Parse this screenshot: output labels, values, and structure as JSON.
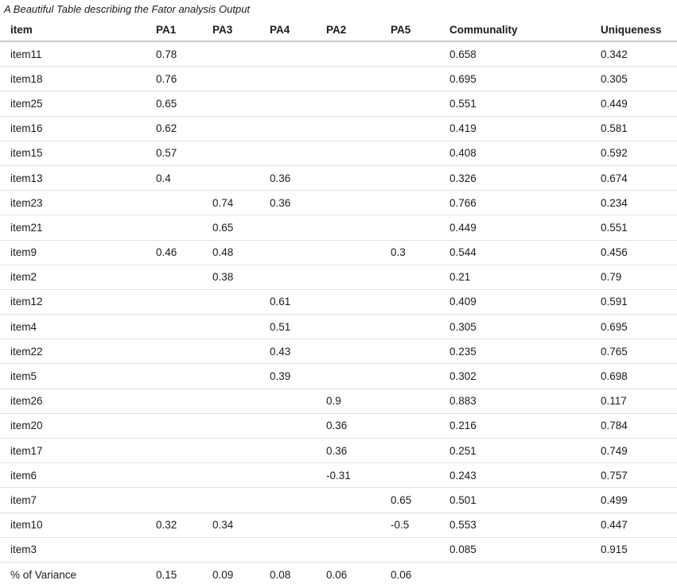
{
  "title": "A Beautiful Table describing the Fator analysis Output",
  "chart_data": {
    "type": "table",
    "title": "A Beautiful Table describing the Fator analysis Output",
    "columns": [
      "item",
      "PA1",
      "PA3",
      "PA4",
      "PA2",
      "PA5",
      "Communality",
      "Uniqueness"
    ],
    "rows": [
      [
        "item11",
        "0.78",
        "",
        "",
        "",
        "",
        "0.658",
        "0.342"
      ],
      [
        "item18",
        "0.76",
        "",
        "",
        "",
        "",
        "0.695",
        "0.305"
      ],
      [
        "item25",
        "0.65",
        "",
        "",
        "",
        "",
        "0.551",
        "0.449"
      ],
      [
        "item16",
        "0.62",
        "",
        "",
        "",
        "",
        "0.419",
        "0.581"
      ],
      [
        "item15",
        "0.57",
        "",
        "",
        "",
        "",
        "0.408",
        "0.592"
      ],
      [
        "item13",
        "0.4",
        "",
        "0.36",
        "",
        "",
        "0.326",
        "0.674"
      ],
      [
        "item23",
        "",
        "0.74",
        "0.36",
        "",
        "",
        "0.766",
        "0.234"
      ],
      [
        "item21",
        "",
        "0.65",
        "",
        "",
        "",
        "0.449",
        "0.551"
      ],
      [
        "item9",
        "0.46",
        "0.48",
        "",
        "",
        "0.3",
        "0.544",
        "0.456"
      ],
      [
        "item2",
        "",
        "0.38",
        "",
        "",
        "",
        "0.21",
        "0.79"
      ],
      [
        "item12",
        "",
        "",
        "0.61",
        "",
        "",
        "0.409",
        "0.591"
      ],
      [
        "item4",
        "",
        "",
        "0.51",
        "",
        "",
        "0.305",
        "0.695"
      ],
      [
        "item22",
        "",
        "",
        "0.43",
        "",
        "",
        "0.235",
        "0.765"
      ],
      [
        "item5",
        "",
        "",
        "0.39",
        "",
        "",
        "0.302",
        "0.698"
      ],
      [
        "item26",
        "",
        "",
        "",
        "0.9",
        "",
        "0.883",
        "0.117"
      ],
      [
        "item20",
        "",
        "",
        "",
        "0.36",
        "",
        "0.216",
        "0.784"
      ],
      [
        "item17",
        "",
        "",
        "",
        "0.36",
        "",
        "0.251",
        "0.749"
      ],
      [
        "item6",
        "",
        "",
        "",
        "-0.31",
        "",
        "0.243",
        "0.757"
      ],
      [
        "item7",
        "",
        "",
        "",
        "",
        "0.65",
        "0.501",
        "0.499"
      ],
      [
        "item10",
        "0.32",
        "0.34",
        "",
        "",
        "-0.5",
        "0.553",
        "0.447"
      ],
      [
        "item3",
        "",
        "",
        "",
        "",
        "",
        "0.085",
        "0.915"
      ],
      [
        "% of Variance",
        "0.15",
        "0.09",
        "0.08",
        "0.06",
        "0.06",
        "",
        ""
      ]
    ]
  },
  "colors": {
    "background": "#ffffff",
    "text": "#1b1b1b",
    "header_rule": "#c9c9c9",
    "row_separator": "#e3e3e3"
  }
}
